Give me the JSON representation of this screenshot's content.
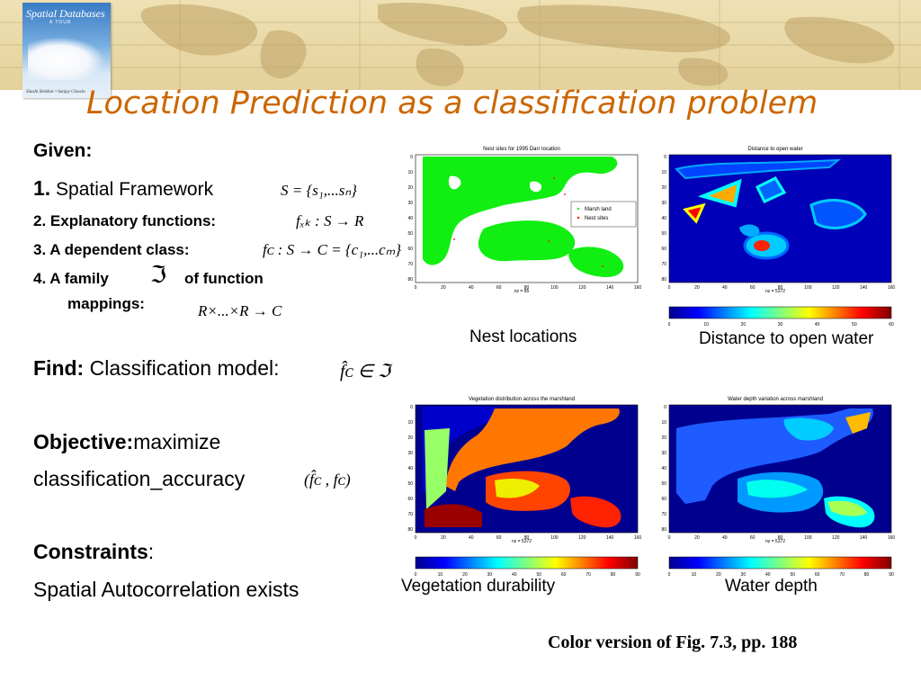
{
  "title": "Location Prediction as a classification problem",
  "book": {
    "title_line1": "Spatial Databases",
    "subtitle": "A TOUR",
    "authors": "Shashi Shekhar • Sanjay Chawla"
  },
  "given": {
    "heading": "Given:",
    "item1_num": "1.",
    "item1_text": "Spatial Framework",
    "item1_formula": "S = {s₁,...sₙ}",
    "item2_text": "2. Explanatory functions:",
    "item2_formula": "fₓₖ : S → R",
    "item3_text": "3. A dependent class:",
    "item3_formula": "fᴄ : S → C = {c₁,...cₘ}",
    "item4_text": "4. A family",
    "item4_symbol": "ℑ",
    "item4_text2": "of function",
    "item4_text3": "mappings:",
    "item4_formula": "R×...×R → C"
  },
  "find": {
    "label": "Find:",
    "text": "Classification model:",
    "formula": "f̂ᴄ ∈ ℑ"
  },
  "objective": {
    "label": "Objective:",
    "text1": "maximize",
    "text2": "classification_accuracy",
    "formula": "(f̂ᴄ , fᴄ)"
  },
  "constraints": {
    "label": "Constraints",
    "colon": ":",
    "text": "Spatial Autocorrelation exists"
  },
  "panels": {
    "nest": {
      "title": "Nest sites for 1995 Darr location",
      "xlabel": "nz = 85",
      "legend": [
        "Marsh land",
        "Nest sites"
      ],
      "caption": "Nest locations"
    },
    "distance": {
      "title": "Distance to open water",
      "xlabel": "nz = 5372",
      "colorbar_ticks": [
        "0",
        "10",
        "20",
        "30",
        "40",
        "50",
        "60"
      ],
      "caption": "Distance to open water"
    },
    "vegetation": {
      "title": "Vegetation distribution across the marshland",
      "xlabel": "nz = 5372",
      "colorbar_ticks": [
        "0",
        "10",
        "20",
        "30",
        "40",
        "50",
        "60",
        "70",
        "80",
        "90"
      ],
      "caption": "Vegetation durability"
    },
    "water": {
      "title": "Water depth variation across marshland",
      "xlabel": "nz = 5372",
      "colorbar_ticks": [
        "0",
        "10",
        "20",
        "30",
        "40",
        "50",
        "60",
        "70",
        "80",
        "90"
      ],
      "caption": "Water depth"
    },
    "x_ticks": [
      "0",
      "20",
      "40",
      "60",
      "80",
      "100",
      "120",
      "140",
      "160"
    ],
    "y_ticks": [
      "0",
      "10",
      "20",
      "30",
      "40",
      "50",
      "60",
      "70",
      "80"
    ]
  },
  "figure_reference": "Color version of Fig. 7.3, pp. 188",
  "colors": {
    "title": "#cc6600",
    "banner": "#e8d7a6",
    "marsh": "#11ee11",
    "jet_low": "#00008f",
    "jet_high": "#800000"
  }
}
